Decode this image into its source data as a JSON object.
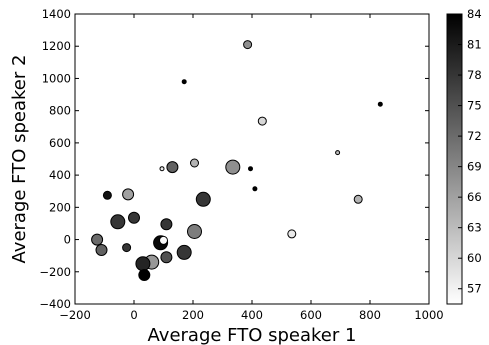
{
  "chart_data": {
    "type": "scatter",
    "title": "",
    "xlabel": "Average FTO speaker 1",
    "ylabel": "Average FTO speaker 2",
    "xlim": [
      -200,
      1000
    ],
    "ylim": [
      -400,
      1400
    ],
    "xticks": [
      -200,
      0,
      200,
      400,
      600,
      800,
      1000
    ],
    "yticks": [
      -400,
      -200,
      0,
      200,
      400,
      600,
      800,
      1000,
      1200,
      1400
    ],
    "xtick_labels": [
      "−200",
      "0",
      "200",
      "400",
      "600",
      "800",
      "1000"
    ],
    "ytick_labels": [
      "−400",
      "−200",
      "0",
      "200",
      "400",
      "600",
      "800",
      "1000",
      "1200",
      "1400"
    ],
    "grid": false,
    "colorbar": {
      "min": 55.5,
      "max": 84,
      "ticks": [
        57,
        60,
        63,
        66,
        69,
        72,
        75,
        78,
        81,
        84
      ],
      "tick_labels": [
        "57",
        "60",
        "63",
        "66",
        "69",
        "72",
        "75",
        "78",
        "81",
        "84"
      ],
      "colormap": "gray_r"
    },
    "size_encoding": "marker area varies per point",
    "points": [
      {
        "x": 385,
        "y": 1210,
        "size": 2,
        "c": 68
      },
      {
        "x": 170,
        "y": 980,
        "size": 1,
        "c": 84
      },
      {
        "x": 835,
        "y": 840,
        "size": 1,
        "c": 84
      },
      {
        "x": 435,
        "y": 735,
        "size": 2,
        "c": 60
      },
      {
        "x": 690,
        "y": 540,
        "size": 1,
        "c": 63
      },
      {
        "x": 205,
        "y": 475,
        "size": 2,
        "c": 64
      },
      {
        "x": 130,
        "y": 450,
        "size": 3,
        "c": 73
      },
      {
        "x": 335,
        "y": 450,
        "size": 4,
        "c": 68
      },
      {
        "x": 95,
        "y": 440,
        "size": 1,
        "c": 58
      },
      {
        "x": 395,
        "y": 440,
        "size": 1,
        "c": 84
      },
      {
        "x": 410,
        "y": 315,
        "size": 1,
        "c": 84
      },
      {
        "x": -90,
        "y": 275,
        "size": 2,
        "c": 82
      },
      {
        "x": -20,
        "y": 280,
        "size": 3,
        "c": 66
      },
      {
        "x": 760,
        "y": 250,
        "size": 2,
        "c": 64
      },
      {
        "x": 235,
        "y": 250,
        "size": 4,
        "c": 78
      },
      {
        "x": -55,
        "y": 110,
        "size": 4,
        "c": 78
      },
      {
        "x": 0,
        "y": 135,
        "size": 3,
        "c": 78
      },
      {
        "x": 110,
        "y": 95,
        "size": 3,
        "c": 78
      },
      {
        "x": 205,
        "y": 50,
        "size": 4,
        "c": 70
      },
      {
        "x": 535,
        "y": 35,
        "size": 2,
        "c": 58
      },
      {
        "x": -125,
        "y": 0,
        "size": 3,
        "c": 72
      },
      {
        "x": 90,
        "y": -20,
        "size": 4,
        "c": 83
      },
      {
        "x": 100,
        "y": -5,
        "size": 2,
        "c": 56
      },
      {
        "x": -25,
        "y": -50,
        "size": 2,
        "c": 78
      },
      {
        "x": -110,
        "y": -65,
        "size": 3,
        "c": 73
      },
      {
        "x": 170,
        "y": -80,
        "size": 4,
        "c": 78
      },
      {
        "x": 110,
        "y": -110,
        "size": 3,
        "c": 75
      },
      {
        "x": 60,
        "y": -140,
        "size": 4,
        "c": 67
      },
      {
        "x": 30,
        "y": -150,
        "size": 4,
        "c": 80
      },
      {
        "x": 35,
        "y": -220,
        "size": 3,
        "c": 84
      }
    ]
  }
}
